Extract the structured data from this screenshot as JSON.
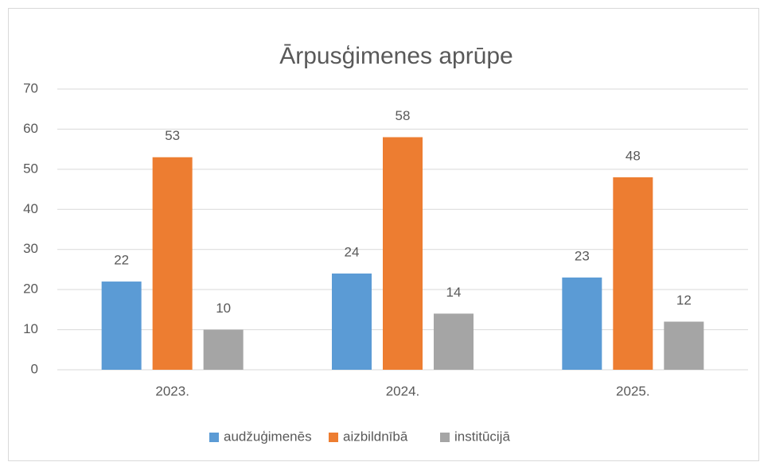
{
  "chart_data": {
    "type": "bar",
    "title": "Ārpusģimenes aprūpe",
    "categories": [
      "2023.",
      "2024.",
      "2025."
    ],
    "series": [
      {
        "name": "audžuģimenēs",
        "color": "#5b9bd5",
        "values": [
          22,
          24,
          23
        ]
      },
      {
        "name": "aizbildnībā",
        "color": "#ed7d31",
        "values": [
          53,
          58,
          48
        ]
      },
      {
        "name": "institūcijā",
        "color": "#a5a5a5",
        "values": [
          10,
          14,
          12
        ]
      }
    ],
    "ylim": [
      0,
      70
    ],
    "yticks": [
      0,
      10,
      20,
      30,
      40,
      50,
      60,
      70
    ],
    "grid": true,
    "legend": "bottom"
  }
}
